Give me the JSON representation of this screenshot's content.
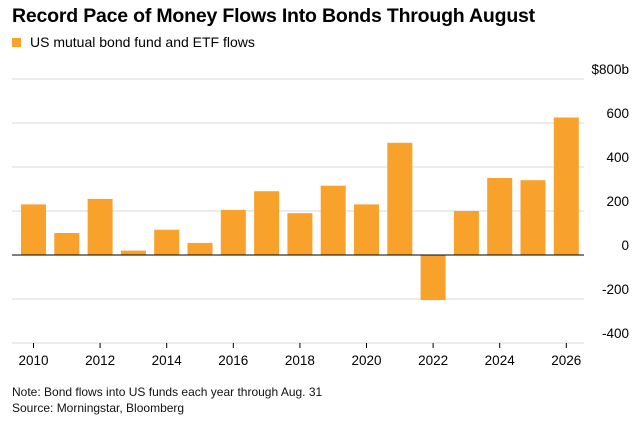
{
  "header": {
    "title": "Record Pace of Money Flows Into Bonds Through August"
  },
  "notes": {
    "note": "Note: Bond flows into US funds each year through Aug. 31",
    "source": "Source: Morningstar, Bloomberg"
  },
  "colors": {
    "bar": "#f9a22b",
    "grid": "#d9d9d9",
    "zero_line": "#000000"
  },
  "chart_data": {
    "type": "bar",
    "title": "Record Pace of Money Flows Into Bonds Through August",
    "series": [
      {
        "name": "US mutual bond fund and ETF flows",
        "x": [
          2010,
          2011,
          2012,
          2013,
          2014,
          2015,
          2016,
          2017,
          2018,
          2019,
          2020,
          2021,
          2022,
          2023,
          2024,
          2025,
          2026
        ],
        "values": [
          230,
          100,
          255,
          20,
          115,
          55,
          205,
          290,
          190,
          315,
          230,
          510,
          -205,
          200,
          350,
          340,
          625
        ]
      }
    ],
    "x_tick_labels": [
      "2010",
      "2012",
      "2014",
      "2016",
      "2018",
      "2020",
      "2022",
      "2024",
      "2026"
    ],
    "y_ticks": [
      {
        "value": 800,
        "label": "$800b"
      },
      {
        "value": 600,
        "label": "600"
      },
      {
        "value": 400,
        "label": "400"
      },
      {
        "value": 200,
        "label": "200"
      },
      {
        "value": 0,
        "label": "0"
      },
      {
        "value": -200,
        "label": "-200"
      },
      {
        "value": -400,
        "label": "-400"
      }
    ],
    "ylim": [
      -400,
      800
    ],
    "y_axis_position": "right",
    "grid": true,
    "legend_position": "top-left"
  }
}
